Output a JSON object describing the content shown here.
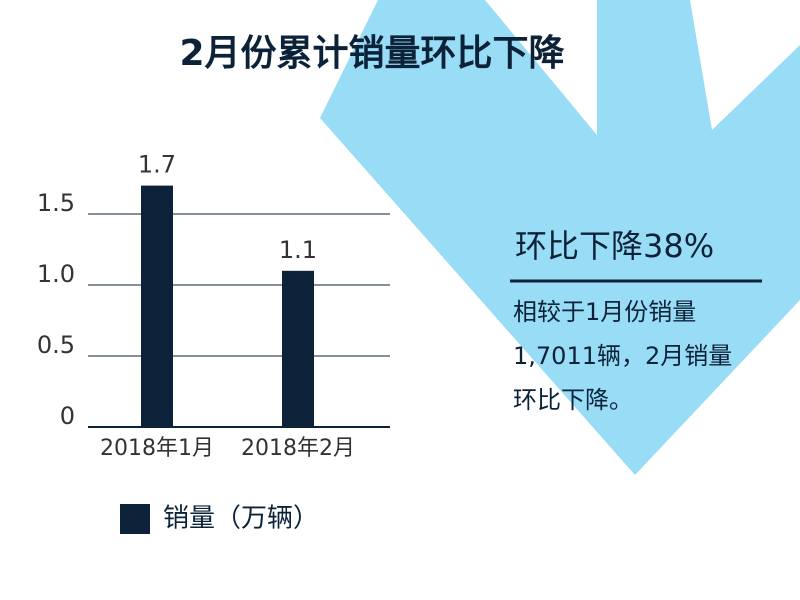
{
  "chart_data": {
    "type": "bar",
    "title": "2月份累计销量环比下降",
    "categories": [
      "2018年1月",
      "2018年2月"
    ],
    "series": [
      {
        "name": "销量（万辆）",
        "color": "#0b2239",
        "values": [
          1.7,
          1.1
        ]
      }
    ],
    "ylim": [
      0,
      1.75
    ],
    "yticks": [
      0,
      0.5,
      {
        "value": 1,
        "label": "1.0"
      },
      1.5
    ],
    "grid": true,
    "callout_title": "环比下降38%",
    "callout_lines": [
      "相较于1月份销量",
      "1,7011辆，2月销量",
      "环比下降。"
    ]
  }
}
